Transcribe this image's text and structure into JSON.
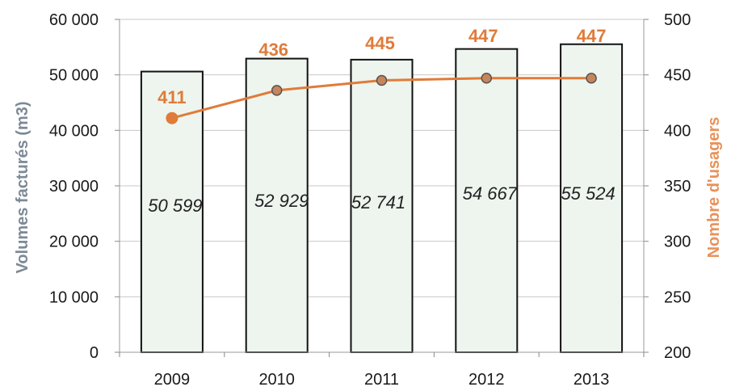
{
  "chart_data": {
    "type": "bar+line",
    "categories": [
      "2009",
      "2010",
      "2011",
      "2012",
      "2013"
    ],
    "series": [
      {
        "type": "bar",
        "axis": "left",
        "values": [
          50599,
          52929,
          52741,
          54667,
          55524
        ],
        "labels": [
          "50 599",
          "52 929",
          "52 741",
          "54 667",
          "55 524"
        ]
      },
      {
        "type": "line",
        "axis": "right",
        "values": [
          411,
          436,
          445,
          447,
          447
        ],
        "labels": [
          "411",
          "436",
          "445",
          "447",
          "447"
        ]
      }
    ],
    "ylabel": "Volumes facturés  (m3)",
    "y2label": "Nombre d'usagers",
    "ylim": [
      0,
      60000
    ],
    "y2lim": [
      200,
      500
    ],
    "yticks": [
      "0",
      "10 000",
      "20 000",
      "30 000",
      "40 000",
      "50 000",
      "60 000"
    ],
    "y2ticks": [
      "200",
      "250",
      "300",
      "350",
      "400",
      "450",
      "500"
    ],
    "grid": true,
    "colors": {
      "bar_fill": "#edf5ee",
      "bar_stroke": "#111111",
      "line": "#e07b39",
      "grid": "#c8c8c8",
      "left_title": "#7d8a96",
      "right_title": "#e8925a"
    }
  }
}
